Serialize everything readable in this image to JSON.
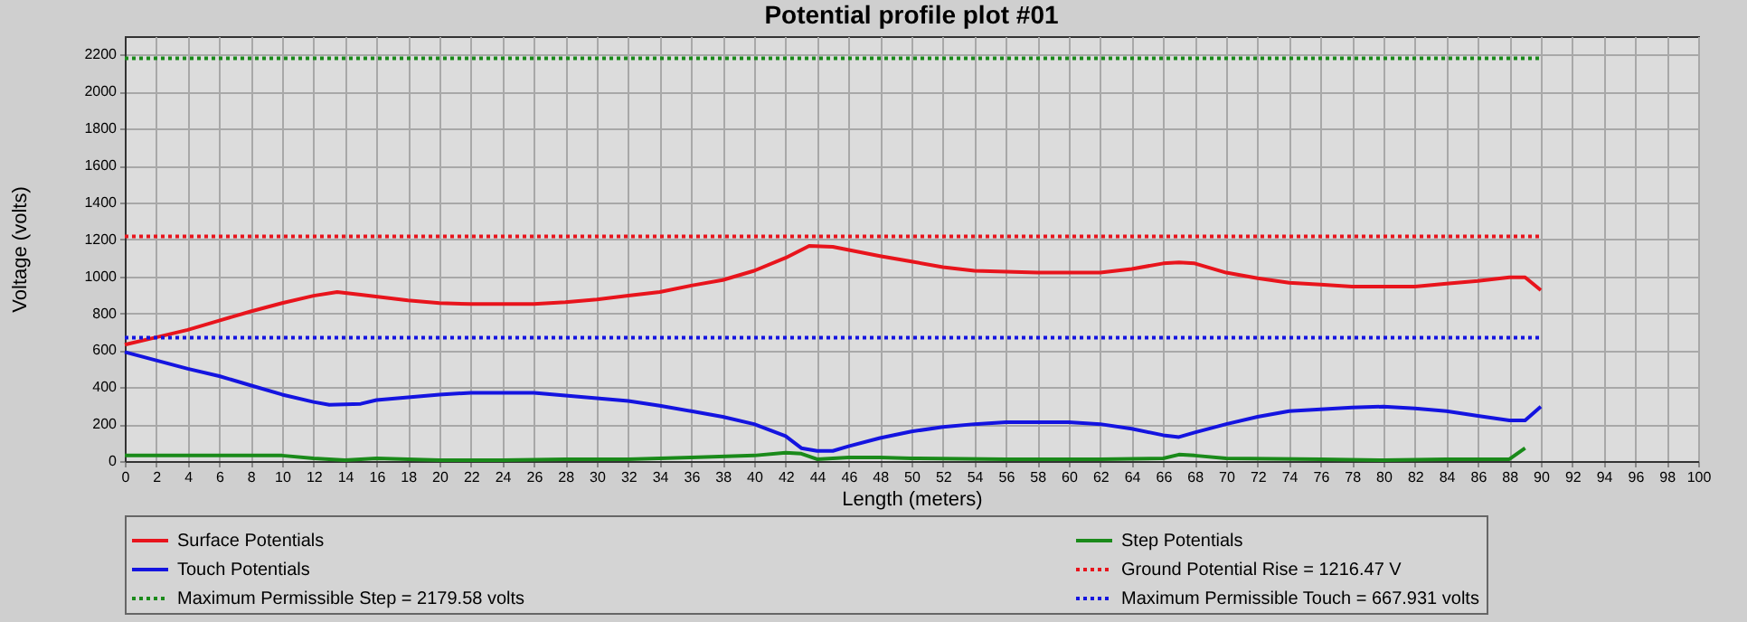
{
  "chart_data": {
    "type": "line",
    "title": "Potential profile plot #01",
    "xlabel": "Length (meters)",
    "ylabel": "Voltage (volts)",
    "xlim": [
      0,
      100
    ],
    "xticks": [
      0,
      2,
      4,
      6,
      8,
      10,
      12,
      14,
      16,
      18,
      20,
      22,
      24,
      26,
      28,
      30,
      32,
      34,
      36,
      38,
      40,
      42,
      44,
      46,
      48,
      50,
      52,
      54,
      56,
      58,
      60,
      62,
      64,
      66,
      68,
      70,
      72,
      74,
      76,
      78,
      80,
      82,
      84,
      86,
      88,
      90,
      92,
      94,
      96,
      98,
      100
    ],
    "ylim": [
      0,
      2300
    ],
    "yticks": [
      0,
      200,
      400,
      600,
      800,
      1000,
      1200,
      1400,
      1600,
      1800,
      2000,
      2200
    ],
    "grid": true,
    "legend": "bottom",
    "series": [
      {
        "name": "Surface Potentials",
        "color": "#e8141c",
        "line_style": "solid",
        "x": [
          0,
          2,
          4,
          6,
          8,
          10,
          12,
          13.5,
          15,
          18,
          20,
          22,
          26,
          28,
          30,
          32,
          34,
          36,
          38,
          40,
          42,
          43.5,
          45,
          48,
          50,
          52,
          54,
          56,
          58,
          62,
          64,
          66,
          67,
          68,
          70,
          72,
          74,
          76,
          78,
          82,
          84,
          86,
          88,
          89,
          90
        ],
        "values": [
          630,
          670,
          710,
          760,
          810,
          855,
          895,
          915,
          900,
          870,
          855,
          850,
          850,
          860,
          875,
          895,
          915,
          950,
          980,
          1030,
          1100,
          1165,
          1160,
          1110,
          1080,
          1050,
          1030,
          1025,
          1020,
          1020,
          1040,
          1070,
          1075,
          1070,
          1020,
          990,
          965,
          955,
          945,
          945,
          960,
          975,
          995,
          995,
          925
        ]
      },
      {
        "name": "Step Potentials",
        "color": "#1a8a1a",
        "line_style": "solid",
        "x": [
          0,
          2,
          10,
          12,
          14,
          16,
          18,
          20,
          24,
          28,
          32,
          36,
          40,
          42,
          43,
          44,
          46,
          48,
          50,
          56,
          62,
          66,
          67,
          68,
          70,
          76,
          80,
          84,
          88,
          89
        ],
        "values": [
          30,
          30,
          30,
          15,
          5,
          15,
          10,
          5,
          5,
          10,
          10,
          20,
          30,
          45,
          40,
          10,
          20,
          20,
          15,
          10,
          10,
          15,
          35,
          30,
          15,
          10,
          5,
          10,
          10,
          70
        ]
      },
      {
        "name": "Touch Potentials",
        "color": "#1414e0",
        "line_style": "solid",
        "x": [
          0,
          2,
          4,
          6,
          8,
          10,
          12,
          13,
          15,
          16,
          18,
          20,
          22,
          26,
          28,
          30,
          32,
          34,
          36,
          38,
          40,
          42,
          43,
          44,
          45,
          46,
          48,
          50,
          52,
          54,
          56,
          58,
          60,
          62,
          64,
          66,
          67,
          68,
          70,
          72,
          74,
          76,
          78,
          80,
          82,
          84,
          86,
          88,
          89,
          90
        ],
        "values": [
          590,
          545,
          500,
          460,
          410,
          360,
          320,
          305,
          310,
          330,
          345,
          360,
          370,
          370,
          355,
          340,
          325,
          300,
          270,
          240,
          200,
          135,
          70,
          55,
          55,
          80,
          125,
          160,
          185,
          200,
          210,
          210,
          210,
          200,
          175,
          140,
          130,
          155,
          200,
          240,
          270,
          280,
          290,
          295,
          285,
          270,
          245,
          220,
          220,
          295
        ]
      },
      {
        "name": "Ground Potential Rise = 1216.47 V",
        "color": "#e8141c",
        "line_style": "dotted",
        "x": [
          0,
          90
        ],
        "values": [
          1216.47,
          1216.47
        ]
      },
      {
        "name": "Maximum Permissible Step = 2179.58 volts",
        "color": "#1a8a1a",
        "line_style": "dotted",
        "x": [
          0,
          90
        ],
        "values": [
          2179.58,
          2179.58
        ]
      },
      {
        "name": "Maximum Permissible Touch = 667.931 volts",
        "color": "#1414e0",
        "line_style": "dotted",
        "x": [
          0,
          90
        ],
        "values": [
          667.931,
          667.931
        ]
      }
    ]
  }
}
